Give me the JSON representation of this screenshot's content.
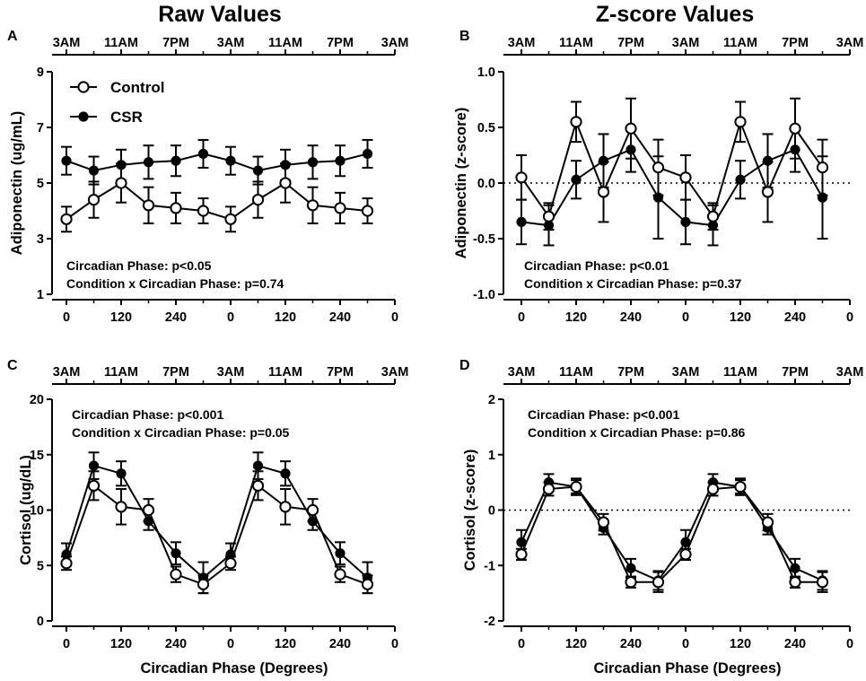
{
  "figure": {
    "titles": [
      "Raw Values",
      "Z-score Values"
    ],
    "colors": {
      "ink": "#000000",
      "open_fill": "#ffffff"
    }
  },
  "chart_data": [
    {
      "type": "line",
      "panel": "A",
      "top_ticks": [
        "3AM",
        "11AM",
        "7PM",
        "3AM",
        "11AM",
        "7PM",
        "3AM"
      ],
      "bottom_ticks": [
        "0",
        "120",
        "240",
        "0",
        "120",
        "240",
        "0"
      ],
      "x": [
        0,
        60,
        120,
        180,
        240,
        300,
        360,
        420,
        480,
        540,
        600,
        660
      ],
      "xlim": [
        -15,
        720
      ],
      "ylabel": "Adiponectin (ug/mL)",
      "xlabel": "",
      "ylim": [
        1,
        9
      ],
      "yticks": [
        1,
        3,
        5,
        7,
        9
      ],
      "zero_line": false,
      "stats": [
        "Circadian Phase: p<0.05",
        "Condition x Circadian Phase: p=0.74"
      ],
      "legend": [
        "Control",
        "CSR"
      ],
      "legend_position": "top-left",
      "series": [
        {
          "name": "Control",
          "marker": "open",
          "values": [
            3.7,
            4.4,
            5.0,
            4.2,
            4.1,
            4.0,
            3.7,
            4.4,
            5.0,
            4.2,
            4.1,
            4.0
          ],
          "err": [
            0.45,
            0.65,
            0.7,
            0.65,
            0.55,
            0.45,
            0.45,
            0.65,
            0.7,
            0.65,
            0.55,
            0.45
          ]
        },
        {
          "name": "CSR",
          "marker": "filled",
          "values": [
            5.8,
            5.45,
            5.65,
            5.75,
            5.8,
            6.05,
            5.8,
            5.45,
            5.65,
            5.75,
            5.8,
            6.05
          ],
          "err": [
            0.5,
            0.5,
            0.55,
            0.6,
            0.55,
            0.5,
            0.5,
            0.5,
            0.55,
            0.6,
            0.55,
            0.5
          ]
        }
      ]
    },
    {
      "type": "line",
      "panel": "B",
      "top_ticks": [
        "3AM",
        "11AM",
        "7PM",
        "3AM",
        "11AM",
        "7PM",
        "3AM"
      ],
      "bottom_ticks": [
        "0",
        "120",
        "240",
        "0",
        "120",
        "240",
        "0"
      ],
      "x": [
        0,
        60,
        120,
        180,
        240,
        300,
        360,
        420,
        480,
        540,
        600,
        660
      ],
      "xlim": [
        -15,
        720
      ],
      "ylabel": "Adiponectin (z-score)",
      "xlabel": "",
      "ylim": [
        -1.0,
        1.0
      ],
      "yticks": [
        "-1.0",
        "-0.5",
        "0.0",
        "0.5",
        "1.0"
      ],
      "zero_line": true,
      "stats": [
        "Circadian Phase: p<0.01",
        "Condition x Circadian Phase: p=0.37"
      ],
      "series": [
        {
          "name": "Control",
          "marker": "open",
          "values": [
            0.05,
            -0.3,
            0.55,
            -0.08,
            0.49,
            0.14,
            0.05,
            -0.3,
            0.55,
            -0.08,
            0.49,
            0.14
          ],
          "err": [
            0.2,
            0.12,
            0.18,
            0.27,
            0.27,
            0.25,
            0.2,
            0.12,
            0.18,
            0.27,
            0.27,
            0.25
          ]
        },
        {
          "name": "CSR",
          "marker": "filled",
          "values": [
            -0.35,
            -0.38,
            0.03,
            0.2,
            0.3,
            -0.13,
            -0.35,
            -0.38,
            0.03,
            0.2,
            0.3,
            -0.13
          ],
          "err": [
            0.2,
            0.18,
            0.17,
            0.24,
            0.2,
            0.37,
            0.2,
            0.18,
            0.17,
            0.24,
            0.2,
            0.37
          ]
        }
      ]
    },
    {
      "type": "line",
      "panel": "C",
      "top_ticks": [
        "3AM",
        "11AM",
        "7PM",
        "3AM",
        "11AM",
        "7PM",
        "3AM"
      ],
      "bottom_ticks": [
        "0",
        "120",
        "240",
        "0",
        "120",
        "240",
        "0"
      ],
      "x": [
        0,
        60,
        120,
        180,
        240,
        300,
        360,
        420,
        480,
        540,
        600,
        660
      ],
      "xlim": [
        -15,
        720
      ],
      "ylabel": "Cortisol (ug/dL)",
      "xlabel": "Circadian Phase (Degrees)",
      "ylim": [
        0,
        20
      ],
      "yticks": [
        0,
        5,
        10,
        15,
        20
      ],
      "zero_line": false,
      "stats": [
        "Circadian Phase: p<0.001",
        "Condition x Circadian Phase: p=0.05"
      ],
      "series": [
        {
          "name": "Control",
          "marker": "open",
          "values": [
            5.2,
            12.2,
            10.3,
            10.0,
            4.2,
            3.3,
            5.2,
            12.2,
            10.3,
            10.0,
            4.2,
            3.3
          ],
          "err": [
            0.6,
            1.3,
            1.6,
            1.0,
            0.7,
            0.8,
            0.6,
            1.3,
            1.6,
            1.0,
            0.7,
            0.8
          ]
        },
        {
          "name": "CSR",
          "marker": "filled",
          "values": [
            6.0,
            14.0,
            13.3,
            9.0,
            6.1,
            3.9,
            6.0,
            14.0,
            13.3,
            9.0,
            6.1,
            3.9
          ],
          "err": [
            1.0,
            1.2,
            1.1,
            0.8,
            1.0,
            1.4,
            1.0,
            1.2,
            1.1,
            0.8,
            1.0,
            1.4
          ]
        }
      ]
    },
    {
      "type": "line",
      "panel": "D",
      "top_ticks": [
        "3AM",
        "11AM",
        "7PM",
        "3AM",
        "11AM",
        "7PM",
        "3AM"
      ],
      "bottom_ticks": [
        "0",
        "120",
        "240",
        "0",
        "120",
        "240",
        "0"
      ],
      "x": [
        0,
        60,
        120,
        180,
        240,
        300,
        360,
        420,
        480,
        540,
        600,
        660
      ],
      "xlim": [
        -15,
        720
      ],
      "ylabel": "Cortisol (z-score)",
      "xlabel": "Circadian Phase (Degrees)",
      "ylim": [
        -2,
        2
      ],
      "yticks": [
        -2,
        -1,
        0,
        1,
        2
      ],
      "zero_line": true,
      "stats": [
        "Circadian Phase: p<0.001",
        "Condition x Circadian Phase: p=0.86"
      ],
      "series": [
        {
          "name": "Control",
          "marker": "open",
          "values": [
            -0.8,
            0.38,
            0.42,
            -0.22,
            -1.3,
            -1.3,
            -0.8,
            0.38,
            0.42,
            -0.22,
            -1.3,
            -1.3
          ],
          "err": [
            0.1,
            0.12,
            0.12,
            0.15,
            0.1,
            0.18,
            0.1,
            0.12,
            0.12,
            0.15,
            0.1,
            0.18
          ]
        },
        {
          "name": "CSR",
          "marker": "filled",
          "values": [
            -0.58,
            0.5,
            0.42,
            -0.32,
            -1.05,
            -1.27,
            -0.58,
            0.5,
            0.42,
            -0.32,
            -1.05,
            -1.27
          ],
          "err": [
            0.22,
            0.15,
            0.15,
            0.12,
            0.17,
            0.17,
            0.22,
            0.15,
            0.15,
            0.12,
            0.17,
            0.17
          ]
        }
      ]
    }
  ]
}
